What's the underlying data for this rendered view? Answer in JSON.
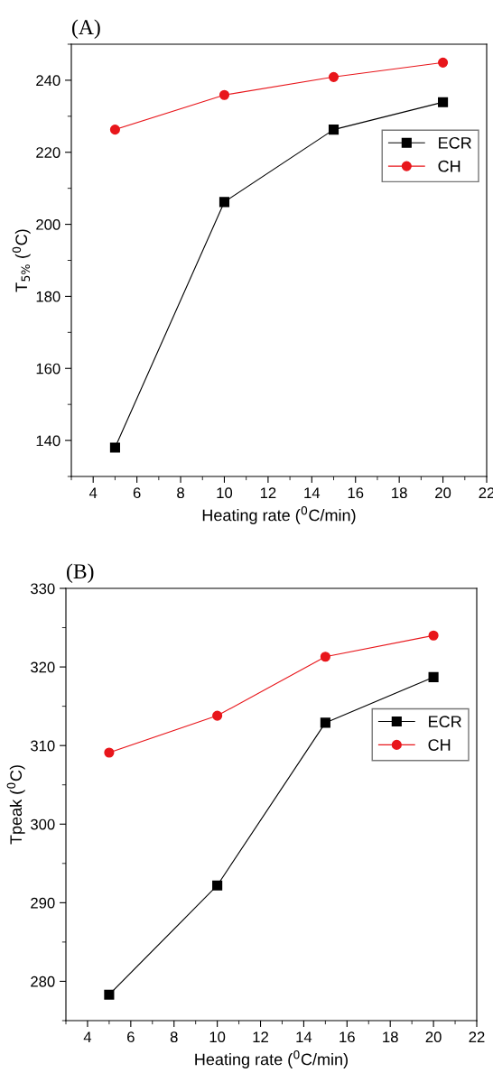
{
  "chart_data": [
    {
      "type": "line",
      "title": "(A)",
      "xlabel": "Heating rate ($^{0}$C/min)",
      "ylabel": "T$_{5%}$ ($^{0}$C)",
      "x": [
        5,
        10,
        15,
        20
      ],
      "series": [
        {
          "name": "ECR",
          "color": "#000000",
          "marker": "square",
          "values": [
            138,
            206.2,
            226.3,
            233.9
          ]
        },
        {
          "name": "CH",
          "color": "#e8161b",
          "marker": "circle",
          "values": [
            226.3,
            235.9,
            240.9,
            244.9
          ]
        }
      ],
      "xlim": [
        3,
        22
      ],
      "xticks": [
        4,
        6,
        8,
        10,
        12,
        14,
        16,
        18,
        20,
        22
      ],
      "ylim": [
        130,
        250
      ],
      "yticks": [
        140,
        160,
        180,
        200,
        220,
        240
      ],
      "legend": "right",
      "grid": false
    },
    {
      "type": "line",
      "title": "(B)",
      "xlabel": "Heating rate ($^{0}$C/min)",
      "ylabel": "Tpeak ($^{0}$C)",
      "x": [
        5,
        10,
        15,
        20
      ],
      "series": [
        {
          "name": "ECR",
          "color": "#000000",
          "marker": "square",
          "values": [
            278.3,
            292.2,
            312.9,
            318.7
          ]
        },
        {
          "name": "CH",
          "color": "#e8161b",
          "marker": "circle",
          "values": [
            309.1,
            313.8,
            321.3,
            324
          ]
        }
      ],
      "xlim": [
        3,
        22
      ],
      "xticks": [
        4,
        6,
        8,
        10,
        12,
        14,
        16,
        18,
        20,
        22
      ],
      "ylim": [
        275,
        330
      ],
      "yticks": [
        280,
        290,
        300,
        310,
        320,
        330
      ],
      "legend": "center right",
      "grid": false
    }
  ]
}
